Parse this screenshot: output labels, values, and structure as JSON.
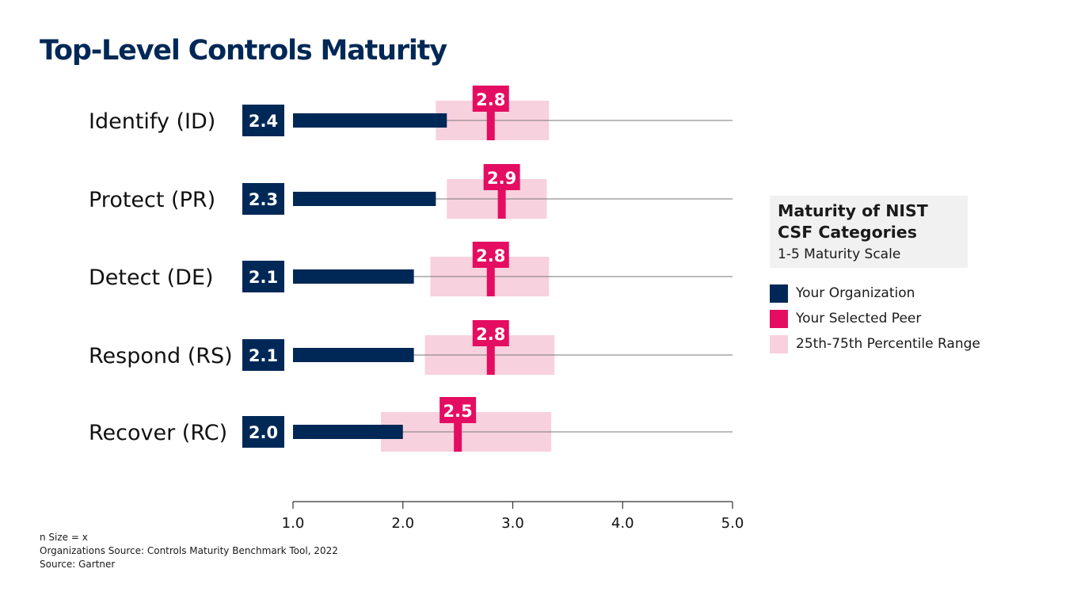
{
  "title": "Top-Level Controls Maturity",
  "colors": {
    "organization": "#002856",
    "peer": "#e40d61",
    "range": "#f8d1de",
    "gridline": "#777777",
    "text_primary": "#002856"
  },
  "legend": {
    "title": "Maturity of NIST CSF Categories",
    "subtitle": "1-5 Maturity Scale",
    "items": [
      {
        "label": "Your Organization",
        "color": "#002856"
      },
      {
        "label": "Your Selected Peer",
        "color": "#e40d61"
      },
      {
        "label": "25th-75th Percentile Range",
        "color": "#f8d1de"
      }
    ]
  },
  "footnotes": [
    "n Size = x",
    "Organizations Source: Controls Maturity Benchmark Tool, 2022",
    "Source: Gartner"
  ],
  "chart_data": {
    "type": "bar",
    "orientation": "horizontal",
    "categories": [
      "Identify (ID)",
      "Protect (PR)",
      "Detect (DE)",
      "Respond (RS)",
      "Recover (RC)"
    ],
    "series": [
      {
        "name": "Your Organization",
        "values": [
          2.4,
          2.3,
          2.1,
          2.1,
          2.0
        ]
      },
      {
        "name": "Your Selected Peer",
        "values": [
          2.8,
          2.9,
          2.8,
          2.8,
          2.5
        ]
      }
    ],
    "range": {
      "name": "25th-75th Percentile Range",
      "low": [
        2.3,
        2.4,
        2.25,
        2.2,
        1.8
      ],
      "high": [
        3.33,
        3.31,
        3.33,
        3.38,
        3.35
      ]
    },
    "xlim": [
      1.0,
      5.0
    ],
    "xticks": [
      "1.0",
      "2.0",
      "3.0",
      "4.0",
      "5.0"
    ],
    "legend_position": "right"
  }
}
